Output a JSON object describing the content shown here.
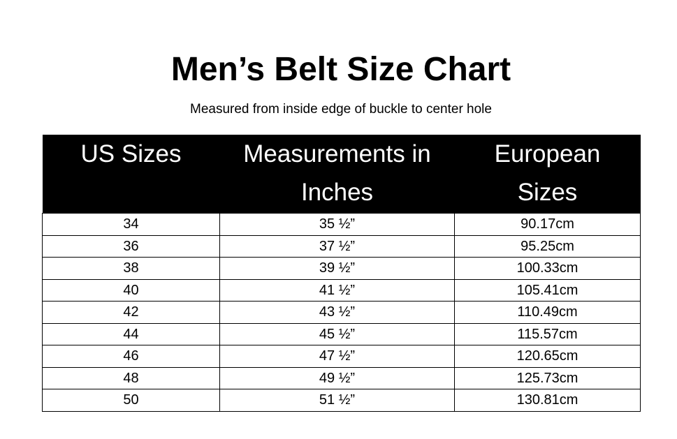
{
  "title": "Men’s Belt Size Chart",
  "subtitle": "Measured from inside edge of buckle to center hole",
  "table": {
    "headers": [
      "US Sizes",
      "Measurements in Inches",
      "European Sizes"
    ],
    "rows": [
      [
        "34",
        "35 ½”",
        "90.17cm"
      ],
      [
        "36",
        "37 ½”",
        "95.25cm"
      ],
      [
        "38",
        "39 ½”",
        "100.33cm"
      ],
      [
        "40",
        "41 ½”",
        "105.41cm"
      ],
      [
        "42",
        "43 ½”",
        "110.49cm"
      ],
      [
        "44",
        "45 ½”",
        "115.57cm"
      ],
      [
        "46",
        "47 ½”",
        "120.65cm"
      ],
      [
        "48",
        "49 ½”",
        "125.73cm"
      ],
      [
        "50",
        "51 ½”",
        "130.81cm"
      ]
    ]
  }
}
